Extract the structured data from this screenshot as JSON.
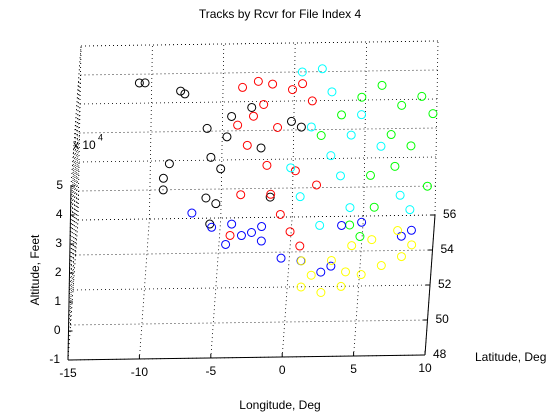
{
  "chart_data": {
    "type": "scatter3",
    "title": "Tracks by Rcvr for File Index 4",
    "xlabel": "Longitude, Deg",
    "ylabel": "Latitude, Deg",
    "zlabel": "Altitude, Feet",
    "zmultiplier": {
      "base": "x 10",
      "exponent": "4"
    },
    "xlim": [
      -15,
      10
    ],
    "xticks": [
      -15,
      -10,
      -5,
      0,
      5,
      10
    ],
    "ylim": [
      48,
      56
    ],
    "yticks": [
      48,
      50,
      52,
      54,
      56
    ],
    "zlim": [
      -1,
      5
    ],
    "zticks": [
      -1,
      0,
      1,
      2,
      3,
      4,
      5
    ],
    "grid": true,
    "series": [
      {
        "color": "#000000",
        "x": [
          -10.8,
          -10.4,
          -7.9,
          -7.6,
          -8.6,
          -9.0,
          -9.0,
          -6.0,
          -5.7,
          -6.0,
          -5.3,
          -5.7,
          -5.0,
          -4.3,
          -2.9,
          -0.1,
          0.6,
          -2.2,
          -1.5,
          -4.6
        ],
        "y": [
          55,
          55,
          55,
          55,
          55,
          55,
          55,
          55,
          55,
          55,
          55,
          55,
          55,
          55,
          55,
          55,
          55,
          55,
          55,
          55
        ],
        "z": [
          4.3,
          4.3,
          4.0,
          3.9,
          1.5,
          1.0,
          0.6,
          2.7,
          1.7,
          0.3,
          0.1,
          -0.6,
          1.3,
          3.1,
          3.4,
          2.9,
          2.7,
          2.0,
          0.3,
          2.4
        ]
      },
      {
        "color": "#ff0000",
        "x": [
          -3.5,
          -2.4,
          -1.4,
          0.0,
          0.7,
          1.4,
          -3.8,
          -3.1,
          -2.7,
          -1.7,
          -1.4,
          -0.7,
          0.0,
          0.7,
          -3.5,
          -4.2,
          -1.0,
          1.8,
          -2.0,
          0.3
        ],
        "y": [
          54,
          54,
          54,
          54,
          54,
          54,
          54,
          54,
          54,
          54,
          54,
          54,
          54,
          54,
          54,
          54,
          54,
          54,
          54,
          54
        ],
        "z": [
          4.7,
          4.9,
          4.8,
          4.6,
          4.8,
          4.2,
          3.4,
          2.7,
          3.7,
          2.0,
          1.0,
          0.3,
          -0.3,
          -0.8,
          1.0,
          -0.4,
          3.3,
          1.3,
          4.1,
          1.8
        ]
      },
      {
        "color": "#00ffff",
        "x": [
          0.6,
          2.0,
          2.7,
          1.3,
          -0.1,
          2.7,
          4.1,
          6.2,
          7.6,
          8.3,
          4.1,
          0.6,
          2.0,
          4.8,
          3.4
        ],
        "y": [
          55,
          55,
          55,
          55,
          55,
          55,
          55,
          55,
          55,
          55,
          55,
          55,
          55,
          55,
          55
        ],
        "z": [
          4.6,
          4.7,
          3.9,
          2.7,
          1.3,
          1.7,
          2.4,
          2.0,
          0.3,
          -0.2,
          -0.1,
          0.3,
          -0.7,
          3.1,
          1.0
        ]
      },
      {
        "color": "#00ff00",
        "x": [
          4.8,
          6.2,
          7.6,
          9.0,
          9.8,
          6.9,
          5.5,
          4.1,
          4.9,
          8.3,
          3.4,
          2.0,
          7.2,
          5.8,
          9.5
        ],
        "y": [
          55,
          55,
          55,
          55,
          55,
          55,
          55,
          55,
          54,
          55,
          55,
          55,
          55,
          55,
          55
        ],
        "z": [
          3.7,
          4.1,
          3.4,
          3.7,
          3.1,
          2.4,
          1.0,
          -0.7,
          -0.5,
          2.0,
          3.1,
          2.4,
          1.3,
          -0.1,
          0.6
        ]
      },
      {
        "color": "#0000ff",
        "x": [
          -6.7,
          -5.3,
          -3.9,
          -2.5,
          -1.8,
          -0.4,
          1.0,
          2.4,
          -1.8,
          -3.2,
          3.8,
          5.2,
          8.0,
          8.7,
          3.1,
          -4.3
        ],
        "y": [
          51,
          51,
          51,
          51,
          51,
          51,
          51,
          51,
          51,
          51,
          51,
          51,
          51,
          51,
          51,
          51
        ],
        "z": [
          2.2,
          1.7,
          1.8,
          1.5,
          1.2,
          0.6,
          0.5,
          0.1,
          1.7,
          1.4,
          1.7,
          1.8,
          1.3,
          1.5,
          0.3,
          1.1
        ]
      },
      {
        "color": "#ffff00",
        "x": [
          1.1,
          1.8,
          2.5,
          3.9,
          5.3,
          6.7,
          8.1,
          8.8,
          4.6,
          3.2,
          6.0,
          1.1,
          7.8,
          4.2
        ],
        "y": [
          50,
          50,
          50,
          50,
          50,
          50,
          50,
          50,
          50,
          50,
          50,
          50,
          50,
          50
        ],
        "z": [
          1.1,
          0.6,
          0.0,
          0.2,
          0.6,
          0.9,
          1.2,
          1.6,
          1.6,
          1.1,
          1.8,
          0.2,
          2.1,
          0.7
        ]
      }
    ]
  }
}
